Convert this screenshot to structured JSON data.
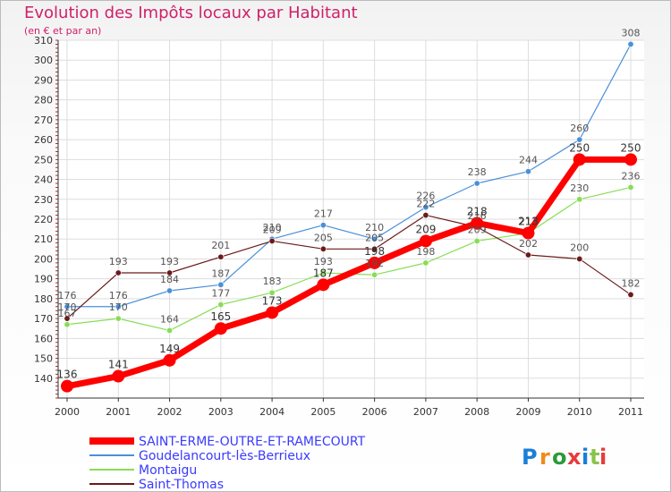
{
  "title": "Evolution des Impôts locaux par Habitant",
  "subtitle": "(en € et par an)",
  "logo": "Proxiti",
  "chart_data": {
    "type": "line",
    "title": "Evolution des Impôts locaux par Habitant",
    "subtitle": "(en € et par an)",
    "x": [
      "2000",
      "2001",
      "2002",
      "2003",
      "2004",
      "2005",
      "2006",
      "2007",
      "2008",
      "2009",
      "2010",
      "2011"
    ],
    "ylim": [
      130,
      310
    ],
    "yticks": [
      140,
      150,
      160,
      170,
      180,
      190,
      200,
      210,
      220,
      230,
      240,
      250,
      260,
      270,
      280,
      290,
      300,
      310
    ],
    "grid": true,
    "legend_position": "bottom-left",
    "series": [
      {
        "name": "SAINT-ERME-OUTRE-ET-RAMECOURT",
        "color": "#ff0000",
        "values": [
          136,
          141,
          149,
          165,
          173,
          187,
          198,
          209,
          218,
          213,
          250,
          250
        ]
      },
      {
        "name": "Goudelancourt-lès-Berrieux",
        "color": "#4a90d9",
        "values": [
          176,
          176,
          184,
          187,
          210,
          217,
          210,
          226,
          238,
          244,
          260,
          308
        ]
      },
      {
        "name": "Montaigu",
        "color": "#88dd55",
        "values": [
          167,
          170,
          164,
          177,
          183,
          193,
          192,
          198,
          209,
          213,
          230,
          236
        ]
      },
      {
        "name": "Saint-Thomas",
        "color": "#6b1a1a",
        "values": [
          170,
          193,
          193,
          201,
          209,
          205,
          205,
          222,
          216,
          202,
          200,
          182
        ]
      }
    ]
  }
}
